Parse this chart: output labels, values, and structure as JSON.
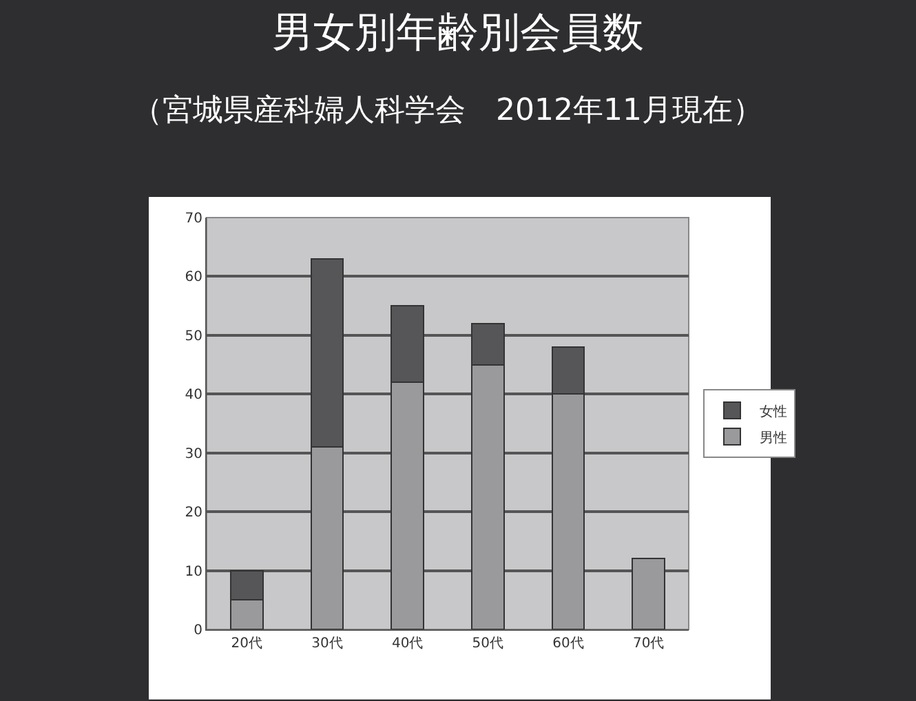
{
  "chart_data": {
    "type": "bar",
    "title": "男女別年齢別会員数",
    "subtitle": "（宮城県産科婦人科学会　2012年11月現在）",
    "categories": [
      "20代",
      "30代",
      "40代",
      "50代",
      "60代",
      "70代"
    ],
    "stacked": true,
    "series": [
      {
        "name": "男性",
        "color": "#9a9a9c",
        "values": [
          5,
          31,
          42,
          45,
          40,
          12
        ]
      },
      {
        "name": "女性",
        "color": "#565658",
        "values": [
          5,
          32,
          13,
          7,
          8,
          null
        ]
      }
    ],
    "ylim": [
      0,
      70
    ],
    "yticks": [
      0,
      10,
      20,
      30,
      40,
      50,
      60,
      70
    ],
    "grid": "y",
    "legend": "right"
  }
}
